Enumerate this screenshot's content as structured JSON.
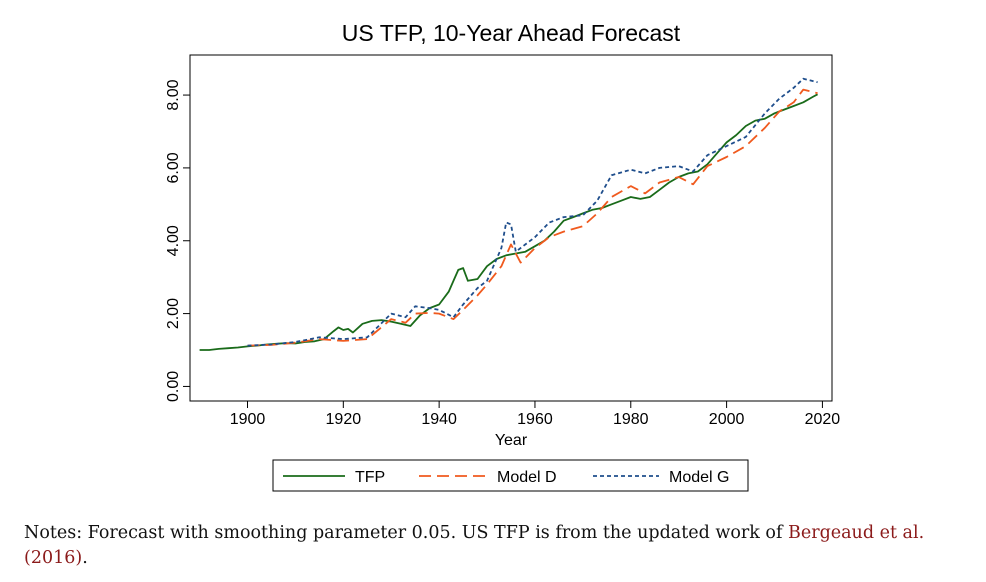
{
  "chart_data": {
    "type": "line",
    "title": "US TFP, 10-Year Ahead Forecast",
    "xlabel": "Year",
    "ylabel": "",
    "xlim": [
      1888,
      2022
    ],
    "ylim": [
      -0.4,
      9.1
    ],
    "xticks": [
      "1900",
      "1920",
      "1940",
      "1960",
      "1980",
      "2000",
      "2020"
    ],
    "xtick_values": [
      1900,
      1920,
      1940,
      1960,
      1980,
      2000,
      2020
    ],
    "yticks": [
      "0.00",
      "2.00",
      "4.00",
      "6.00",
      "8.00"
    ],
    "ytick_values": [
      0,
      2,
      4,
      6,
      8
    ],
    "grid": false,
    "legend_position": "bottom",
    "series": [
      {
        "name": "TFP",
        "color": "#1a6b1a",
        "style": "solid",
        "x": [
          1890,
          1892,
          1894,
          1896,
          1898,
          1900,
          1902,
          1904,
          1906,
          1908,
          1910,
          1912,
          1914,
          1916,
          1918,
          1919,
          1920,
          1921,
          1922,
          1923,
          1924,
          1926,
          1928,
          1930,
          1932,
          1934,
          1936,
          1938,
          1940,
          1942,
          1943,
          1944,
          1945,
          1946,
          1948,
          1950,
          1952,
          1954,
          1956,
          1958,
          1960,
          1962,
          1964,
          1966,
          1968,
          1970,
          1972,
          1974,
          1976,
          1978,
          1980,
          1982,
          1984,
          1986,
          1988,
          1990,
          1992,
          1994,
          1996,
          1998,
          2000,
          2002,
          2004,
          2006,
          2008,
          2010,
          2012,
          2014,
          2016,
          2018,
          2019
        ],
        "y": [
          1.0,
          1.0,
          1.03,
          1.05,
          1.07,
          1.1,
          1.12,
          1.15,
          1.17,
          1.19,
          1.18,
          1.22,
          1.24,
          1.3,
          1.52,
          1.62,
          1.55,
          1.58,
          1.48,
          1.6,
          1.72,
          1.8,
          1.82,
          1.78,
          1.72,
          1.66,
          1.95,
          2.15,
          2.25,
          2.6,
          2.9,
          3.2,
          3.25,
          2.9,
          2.95,
          3.3,
          3.5,
          3.6,
          3.65,
          3.7,
          3.85,
          4.0,
          4.25,
          4.55,
          4.65,
          4.75,
          4.85,
          4.9,
          5.0,
          5.1,
          5.2,
          5.15,
          5.2,
          5.4,
          5.6,
          5.75,
          5.85,
          5.9,
          6.1,
          6.4,
          6.7,
          6.9,
          7.15,
          7.3,
          7.35,
          7.5,
          7.6,
          7.7,
          7.8,
          7.95,
          8.02
        ]
      },
      {
        "name": "Model D",
        "color": "#f05a1e",
        "style": "dashed",
        "x": [
          1900,
          1905,
          1910,
          1915,
          1920,
          1925,
          1930,
          1933,
          1935,
          1938,
          1940,
          1943,
          1945,
          1948,
          1950,
          1953,
          1955,
          1957,
          1960,
          1963,
          1966,
          1970,
          1973,
          1976,
          1980,
          1983,
          1986,
          1990,
          1993,
          1996,
          2000,
          2004,
          2008,
          2011,
          2014,
          2016,
          2019
        ],
        "y": [
          1.12,
          1.14,
          1.2,
          1.3,
          1.25,
          1.3,
          1.85,
          1.75,
          2.0,
          2.02,
          2.0,
          1.85,
          2.1,
          2.5,
          2.8,
          3.3,
          3.9,
          3.4,
          3.8,
          4.1,
          4.25,
          4.4,
          4.75,
          5.2,
          5.5,
          5.3,
          5.6,
          5.75,
          5.55,
          6.05,
          6.3,
          6.6,
          7.1,
          7.55,
          7.8,
          8.15,
          8.05
        ]
      },
      {
        "name": "Model G",
        "color": "#1f4e8c",
        "style": "dotted",
        "x": [
          1900,
          1905,
          1910,
          1915,
          1920,
          1925,
          1930,
          1933,
          1935,
          1938,
          1940,
          1943,
          1945,
          1948,
          1950,
          1953,
          1954,
          1955,
          1956,
          1958,
          1960,
          1963,
          1966,
          1970,
          1973,
          1976,
          1980,
          1983,
          1986,
          1990,
          1993,
          1996,
          2000,
          2004,
          2008,
          2011,
          2014,
          2016,
          2019
        ],
        "y": [
          1.12,
          1.15,
          1.22,
          1.35,
          1.3,
          1.35,
          2.0,
          1.9,
          2.2,
          2.15,
          2.1,
          1.9,
          2.25,
          2.7,
          2.9,
          3.8,
          4.5,
          4.45,
          3.7,
          3.9,
          4.1,
          4.5,
          4.65,
          4.7,
          5.1,
          5.8,
          5.95,
          5.85,
          6.0,
          6.05,
          5.9,
          6.35,
          6.6,
          6.85,
          7.5,
          7.9,
          8.2,
          8.45,
          8.35
        ]
      }
    ]
  },
  "notes": {
    "text": "Notes: Forecast with smoothing parameter 0.05. US TFP is from the updated work of ",
    "citation": "Bergeaud et al. (2016)",
    "end": "."
  }
}
